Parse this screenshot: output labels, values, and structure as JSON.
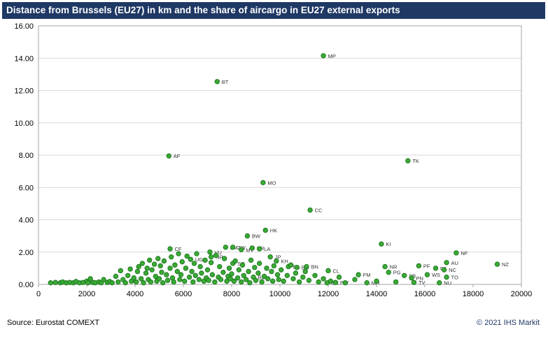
{
  "title_bar": {
    "title": "Distance from Brussels (EU27) in km and the share of aircargo  in EU27 external exports"
  },
  "footer": {
    "source": "Source: Eurostat COMEXT",
    "copyright": "© 2021 IHS Markit"
  },
  "colors": {
    "title_bg": "#1F3864",
    "title_text": "#FFFFFF",
    "point_fill": "#3BAA34",
    "point_stroke": "#1E7A23",
    "grid": "#D9D9D9",
    "axis": "#A6A6A6",
    "tick_text": "#000000",
    "point_label_text": "#333333",
    "copyright_text": "#1F3864"
  },
  "chart_data": {
    "type": "scatter",
    "title": "Distance from Brussels (EU27) in km and the share of aircargo  in EU27 external exports",
    "xlabel": "Distance from Brussels (EU27) in km",
    "ylabel": "Share of aircargo in EU27 external exports",
    "xlim": [
      0,
      20000
    ],
    "ylim": [
      0,
      16
    ],
    "x_ticks": [
      0,
      2000,
      4000,
      6000,
      8000,
      10000,
      12000,
      14000,
      16000,
      18000,
      20000
    ],
    "y_ticks": [
      0,
      2,
      4,
      6,
      8,
      10,
      12,
      14,
      16
    ],
    "grid": "horizontal",
    "legend": "none",
    "points_format": [
      "x_km",
      "y_share",
      "label"
    ],
    "points": [
      [
        11800,
        14.15,
        "MP"
      ],
      [
        7400,
        12.55,
        "BT"
      ],
      [
        5400,
        7.95,
        "AF"
      ],
      [
        15300,
        7.65,
        "TK"
      ],
      [
        9300,
        6.3,
        "MO"
      ],
      [
        11250,
        4.6,
        "CC"
      ],
      [
        9400,
        3.35,
        "HK"
      ],
      [
        8650,
        3.0,
        "BW"
      ],
      [
        7750,
        2.3,
        "ZM"
      ],
      [
        8050,
        2.3,
        "ZW"
      ],
      [
        8400,
        2.15,
        "MV"
      ],
      [
        8850,
        2.25,
        "KR"
      ],
      [
        9150,
        2.2,
        "LA"
      ],
      [
        14200,
        2.5,
        "KI"
      ],
      [
        17300,
        1.95,
        "NF"
      ],
      [
        19000,
        1.25,
        "NZ"
      ],
      [
        5450,
        2.2,
        "CF"
      ],
      [
        7100,
        2.0,
        "VU"
      ],
      [
        7150,
        1.7,
        "NP"
      ],
      [
        6300,
        1.55,
        "UG"
      ],
      [
        8050,
        1.3,
        "SC"
      ],
      [
        9600,
        1.7,
        "JP"
      ],
      [
        9850,
        1.45,
        "KH"
      ],
      [
        10350,
        1.1,
        "BA"
      ],
      [
        10700,
        1.05,
        "BG"
      ],
      [
        11100,
        1.1,
        "BN"
      ],
      [
        12000,
        0.85,
        "CL"
      ],
      [
        13250,
        0.6,
        "FM"
      ],
      [
        14350,
        1.1,
        "NR"
      ],
      [
        14500,
        0.75,
        "PG"
      ],
      [
        15750,
        1.15,
        "PF"
      ],
      [
        16450,
        1.0,
        "FJ"
      ],
      [
        16800,
        0.9,
        "NC"
      ],
      [
        16900,
        1.35,
        "AU"
      ],
      [
        15150,
        0.55,
        "SB"
      ],
      [
        15450,
        0.4,
        "PN"
      ],
      [
        16100,
        0.6,
        "WS"
      ],
      [
        16900,
        0.45,
        "TO"
      ],
      [
        15550,
        0.12,
        "TV"
      ],
      [
        16600,
        0.1,
        "NU"
      ],
      [
        13600,
        0.1,
        "MH"
      ],
      [
        11950,
        0.1,
        "CX"
      ],
      [
        12300,
        0.12,
        "PW"
      ],
      [
        8900,
        0.45,
        "BZ"
      ],
      [
        500,
        0.1,
        ""
      ],
      [
        700,
        0.12,
        ""
      ],
      [
        900,
        0.1,
        ""
      ],
      [
        1000,
        0.15,
        ""
      ],
      [
        1150,
        0.1,
        ""
      ],
      [
        1300,
        0.12,
        ""
      ],
      [
        1450,
        0.1,
        ""
      ],
      [
        1550,
        0.18,
        ""
      ],
      [
        1700,
        0.1,
        ""
      ],
      [
        1850,
        0.12,
        ""
      ],
      [
        2000,
        0.2,
        ""
      ],
      [
        2050,
        0.1,
        ""
      ],
      [
        2150,
        0.35,
        ""
      ],
      [
        2250,
        0.12,
        ""
      ],
      [
        2350,
        0.1,
        ""
      ],
      [
        2500,
        0.15,
        ""
      ],
      [
        2600,
        0.1,
        ""
      ],
      [
        2700,
        0.3,
        ""
      ],
      [
        2850,
        0.12,
        ""
      ],
      [
        2950,
        0.18,
        ""
      ],
      [
        3050,
        0.1,
        ""
      ],
      [
        3200,
        0.5,
        ""
      ],
      [
        3300,
        0.15,
        ""
      ],
      [
        3400,
        0.85,
        ""
      ],
      [
        3500,
        0.3,
        ""
      ],
      [
        3600,
        0.1,
        ""
      ],
      [
        3700,
        0.55,
        ""
      ],
      [
        3800,
        0.95,
        ""
      ],
      [
        3850,
        0.2,
        ""
      ],
      [
        3950,
        0.4,
        ""
      ],
      [
        4050,
        0.15,
        ""
      ],
      [
        4100,
        0.8,
        ""
      ],
      [
        4150,
        1.1,
        ""
      ],
      [
        4250,
        0.35,
        ""
      ],
      [
        4300,
        1.3,
        ""
      ],
      [
        4350,
        0.1,
        ""
      ],
      [
        4450,
        0.7,
        ""
      ],
      [
        4500,
        1.0,
        ""
      ],
      [
        4550,
        0.3,
        ""
      ],
      [
        4600,
        1.5,
        ""
      ],
      [
        4650,
        0.15,
        ""
      ],
      [
        4700,
        0.9,
        ""
      ],
      [
        4800,
        1.25,
        ""
      ],
      [
        4850,
        0.5,
        ""
      ],
      [
        4900,
        0.2,
        ""
      ],
      [
        4950,
        1.6,
        ""
      ],
      [
        5000,
        0.35,
        ""
      ],
      [
        5050,
        1.15,
        ""
      ],
      [
        5100,
        0.75,
        ""
      ],
      [
        5150,
        0.1,
        ""
      ],
      [
        5200,
        1.45,
        ""
      ],
      [
        5300,
        0.6,
        ""
      ],
      [
        5350,
        0.25,
        ""
      ],
      [
        5450,
        1.0,
        ""
      ],
      [
        5500,
        1.7,
        ""
      ],
      [
        5550,
        0.4,
        ""
      ],
      [
        5600,
        0.15,
        ""
      ],
      [
        5650,
        1.2,
        ""
      ],
      [
        5750,
        0.8,
        ""
      ],
      [
        5800,
        1.9,
        ""
      ],
      [
        5850,
        0.3,
        ""
      ],
      [
        5900,
        0.6,
        ""
      ],
      [
        5950,
        1.4,
        ""
      ],
      [
        6050,
        0.2,
        ""
      ],
      [
        6100,
        1.0,
        ""
      ],
      [
        6150,
        1.75,
        ""
      ],
      [
        6250,
        0.45,
        ""
      ],
      [
        6350,
        0.8,
        ""
      ],
      [
        6400,
        0.15,
        ""
      ],
      [
        6450,
        1.3,
        ""
      ],
      [
        6500,
        0.55,
        ""
      ],
      [
        6550,
        1.9,
        ""
      ],
      [
        6650,
        0.3,
        ""
      ],
      [
        6700,
        1.1,
        ""
      ],
      [
        6750,
        0.7,
        ""
      ],
      [
        6850,
        0.2,
        ""
      ],
      [
        6900,
        1.5,
        ""
      ],
      [
        6950,
        0.4,
        ""
      ],
      [
        7000,
        0.9,
        ""
      ],
      [
        7050,
        0.25,
        ""
      ],
      [
        7150,
        1.35,
        ""
      ],
      [
        7200,
        0.6,
        ""
      ],
      [
        7300,
        0.15,
        ""
      ],
      [
        7350,
        1.8,
        ""
      ],
      [
        7450,
        0.45,
        ""
      ],
      [
        7500,
        1.1,
        ""
      ],
      [
        7550,
        0.3,
        ""
      ],
      [
        7650,
        0.75,
        ""
      ],
      [
        7700,
        1.6,
        ""
      ],
      [
        7800,
        0.2,
        ""
      ],
      [
        7850,
        0.5,
        ""
      ],
      [
        7900,
        1.0,
        ""
      ],
      [
        7950,
        0.35,
        ""
      ],
      [
        8000,
        0.65,
        ""
      ],
      [
        8100,
        0.2,
        ""
      ],
      [
        8150,
        1.45,
        ""
      ],
      [
        8250,
        0.4,
        ""
      ],
      [
        8300,
        0.9,
        ""
      ],
      [
        8400,
        0.15,
        ""
      ],
      [
        8450,
        1.2,
        ""
      ],
      [
        8500,
        0.55,
        ""
      ],
      [
        8600,
        0.3,
        ""
      ],
      [
        8700,
        0.8,
        ""
      ],
      [
        8750,
        0.1,
        ""
      ],
      [
        8800,
        1.5,
        ""
      ],
      [
        8950,
        1.05,
        ""
      ],
      [
        9000,
        0.25,
        ""
      ],
      [
        9100,
        0.7,
        ""
      ],
      [
        9150,
        1.3,
        ""
      ],
      [
        9250,
        0.15,
        ""
      ],
      [
        9350,
        0.5,
        ""
      ],
      [
        9450,
        1.0,
        ""
      ],
      [
        9500,
        0.35,
        ""
      ],
      [
        9650,
        0.8,
        ""
      ],
      [
        9700,
        0.2,
        ""
      ],
      [
        9750,
        1.15,
        ""
      ],
      [
        9900,
        0.6,
        ""
      ],
      [
        9950,
        0.3,
        ""
      ],
      [
        10050,
        0.9,
        ""
      ],
      [
        10150,
        0.2,
        ""
      ],
      [
        10300,
        0.55,
        ""
      ],
      [
        10450,
        1.2,
        ""
      ],
      [
        10550,
        0.35,
        ""
      ],
      [
        10650,
        0.7,
        ""
      ],
      [
        10800,
        0.15,
        ""
      ],
      [
        10950,
        0.45,
        ""
      ],
      [
        11050,
        0.8,
        ""
      ],
      [
        11200,
        0.25,
        ""
      ],
      [
        11450,
        0.55,
        ""
      ],
      [
        11600,
        0.15,
        ""
      ],
      [
        11800,
        0.35,
        ""
      ],
      [
        12100,
        0.2,
        ""
      ],
      [
        12450,
        0.45,
        ""
      ],
      [
        12700,
        0.1,
        ""
      ],
      [
        13100,
        0.3,
        ""
      ],
      [
        14000,
        0.2,
        ""
      ],
      [
        14800,
        0.15,
        ""
      ]
    ]
  }
}
